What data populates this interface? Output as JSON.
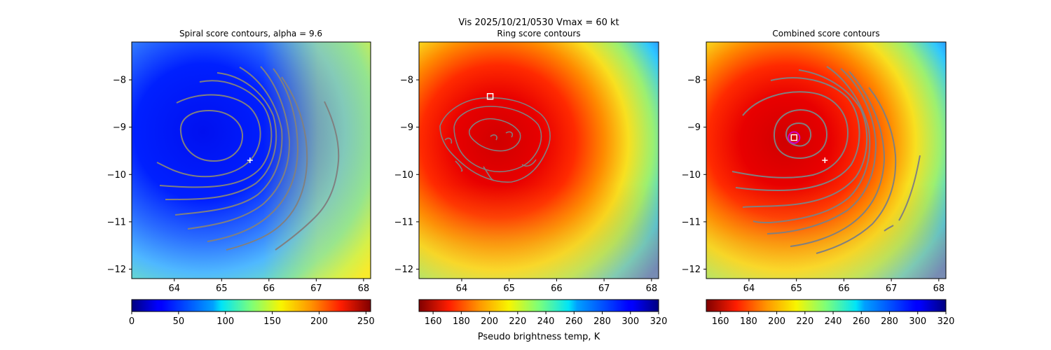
{
  "suptitle": "Vis  2025/10/21/0530    Vmax = 60 kt",
  "chart_data": [
    {
      "type": "heatmap",
      "title": "Spiral score contours, alpha =  9.6",
      "xlim": [
        63.1,
        68.15
      ],
      "ylim": [
        -12.2,
        -7.2
      ],
      "xticks": [
        "64",
        "65",
        "66",
        "67",
        "68"
      ],
      "yticks": [
        "−8",
        "−9",
        "−10",
        "−11",
        "−12"
      ],
      "colorbar": {
        "ticks": [
          "0",
          "50",
          "100",
          "150",
          "200",
          "250"
        ],
        "label": "",
        "cmap": "jet"
      },
      "markers": [
        {
          "type": "plus",
          "x": 65.6,
          "y": -9.7,
          "color": "#ffffff"
        }
      ],
      "contour_color": "#808080"
    },
    {
      "type": "heatmap",
      "title": "Ring score contours",
      "xlim": [
        63.1,
        68.15
      ],
      "ylim": [
        -12.2,
        -7.2
      ],
      "xticks": [
        "64",
        "65",
        "66",
        "67",
        "68"
      ],
      "yticks": [
        "−8",
        "−9",
        "−10",
        "−11",
        "−12"
      ],
      "colorbar": {
        "ticks": [
          "160",
          "180",
          "200",
          "220",
          "240",
          "260",
          "280",
          "300",
          "320"
        ],
        "label": "Pseudo brightness temp, K",
        "cmap": "jet_r"
      },
      "markers": [
        {
          "type": "square",
          "x": 64.6,
          "y": -8.35,
          "color": "#ffffff"
        }
      ],
      "contour_color": "#808080"
    },
    {
      "type": "heatmap",
      "title": "Combined score contours",
      "xlim": [
        63.1,
        68.15
      ],
      "ylim": [
        -12.2,
        -7.2
      ],
      "xticks": [
        "64",
        "65",
        "66",
        "67",
        "68"
      ],
      "yticks": [
        "−8",
        "−9",
        "−10",
        "−11",
        "−12"
      ],
      "colorbar": {
        "ticks": [
          "160",
          "180",
          "200",
          "220",
          "240",
          "260",
          "280",
          "300",
          "320"
        ],
        "label": "",
        "cmap": "jet_r"
      },
      "markers": [
        {
          "type": "plus",
          "x": 65.6,
          "y": -9.7,
          "color": "#ffffff"
        },
        {
          "type": "circle",
          "x": 64.95,
          "y": -9.22,
          "color": "#cc00cc"
        },
        {
          "type": "square",
          "x": 64.95,
          "y": -9.22,
          "color": "#ffffff"
        }
      ],
      "contour_color": "#808080"
    }
  ]
}
